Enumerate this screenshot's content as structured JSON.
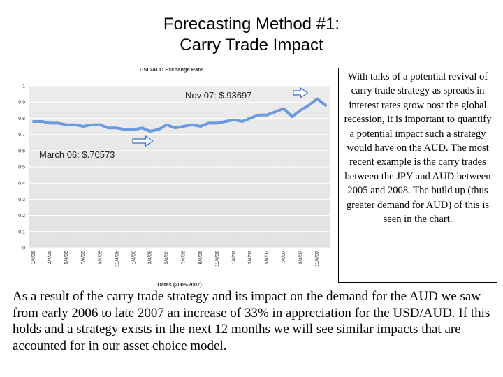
{
  "slide": {
    "title_line1": "Forecasting Method #1:",
    "title_line2": "Carry Trade Impact",
    "side_text": "With talks of a potential revival of carry trade strategy as spreads in interest rates grow post the global recession, it is important to quantify a potential impact such a strategy would have on the AUD.  The most recent example is the carry trades between the JPY and AUD between 2005 and 2008.  The build up (thus greater demand for AUD) of this is seen in the chart.",
    "bottom_text": "As a result of the carry trade strategy and its impact on the demand for the AUD we saw from early 2006 to late 2007 an increase of   33% in appreciation for the USD/AUD.  If this holds and a strategy exists in the next 12 months we will see similar impacts that are accounted for in our asset choice model."
  },
  "chart_data": {
    "type": "line",
    "title": "USD/AUD Exchange Rate",
    "xlabel": "Dates (2005-2007)",
    "ylabel": "",
    "ylim": [
      0,
      1
    ],
    "yticks": [
      "0",
      "0.1",
      "0.2",
      "0.3",
      "0.4",
      "0.5",
      "0.6",
      "0.7",
      "0.8",
      "0.9",
      "1"
    ],
    "xtick_labels": [
      "1/4/05",
      "3/4/05",
      "5/4/05",
      "7/4/05",
      "9/4/05",
      "11/4/05",
      "1/4/06",
      "3/4/06",
      "5/4/06",
      "7/4/06",
      "9/4/06",
      "11/4/06",
      "1/4/07",
      "3/4/07",
      "5/4/07",
      "7/4/07",
      "9/4/07",
      "11/4/07"
    ],
    "grid": true,
    "line_color": "#6a9be0",
    "series": [
      {
        "x": [
          "1/4/05",
          "2/4/05",
          "3/4/05",
          "4/4/05",
          "5/4/05",
          "6/4/05",
          "7/4/05",
          "8/4/05",
          "9/4/05",
          "10/4/05",
          "11/4/05",
          "12/4/05",
          "1/4/06",
          "2/4/06",
          "3/4/06",
          "4/4/06",
          "5/4/06",
          "6/4/06",
          "7/4/06",
          "8/4/06",
          "9/4/06",
          "10/4/06",
          "11/4/06",
          "12/4/06",
          "1/4/07",
          "2/4/07",
          "3/4/07",
          "4/4/07",
          "5/4/07",
          "6/4/07",
          "7/4/07",
          "8/4/07",
          "9/4/07",
          "10/4/07",
          "11/4/07",
          "12/4/07"
        ],
        "values": [
          0.78,
          0.78,
          0.77,
          0.77,
          0.76,
          0.76,
          0.75,
          0.76,
          0.76,
          0.74,
          0.74,
          0.73,
          0.73,
          0.74,
          0.72,
          0.73,
          0.76,
          0.74,
          0.75,
          0.76,
          0.75,
          0.77,
          0.77,
          0.78,
          0.79,
          0.78,
          0.8,
          0.82,
          0.82,
          0.84,
          0.86,
          0.81,
          0.85,
          0.88,
          0.92,
          0.88
        ]
      }
    ],
    "annotations": [
      {
        "text": "Nov 07: $.93697",
        "x": "11/4/07",
        "value": 0.93697
      },
      {
        "text": "March 06: $.70573",
        "x": "3/4/06",
        "value": 0.70573
      }
    ]
  }
}
